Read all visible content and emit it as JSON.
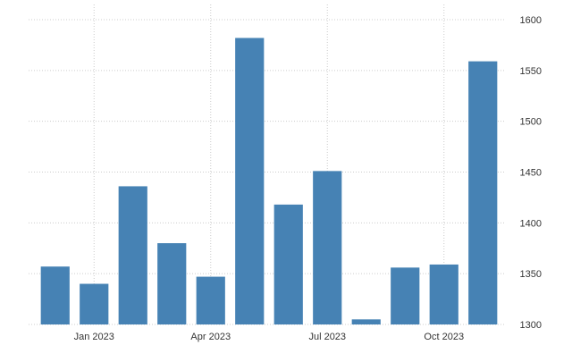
{
  "chart_data": {
    "type": "bar",
    "x": [
      "2022-12",
      "2023-01",
      "2023-02",
      "2023-03",
      "2023-04",
      "2023-05",
      "2023-06",
      "2023-07",
      "2023-08",
      "2023-09",
      "2023-10",
      "2023-11"
    ],
    "values": [
      1357,
      1340,
      1436,
      1380,
      1347,
      1582,
      1418,
      1451,
      1305,
      1356,
      1359,
      1559
    ],
    "x_ticks": [
      "Jan 2023",
      "Apr 2023",
      "Jul 2023",
      "Oct 2023"
    ],
    "y_ticks": [
      1300,
      1350,
      1400,
      1450,
      1500,
      1550,
      1600
    ],
    "ylim": [
      1300,
      1600
    ],
    "y_axis_position": "right",
    "grid": true,
    "bar_color": "#4682b4",
    "title": "",
    "xlabel": "",
    "ylabel": ""
  }
}
